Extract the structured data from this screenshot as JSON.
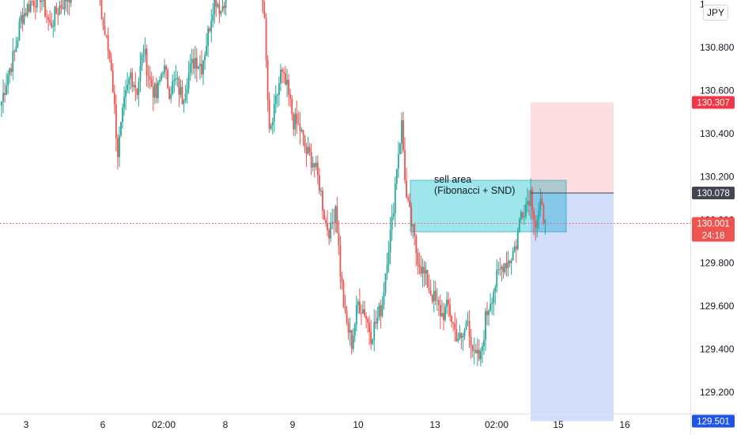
{
  "currency_label": "JPY",
  "colors": {
    "up": "#26a69a",
    "down": "#ef5350",
    "current": "#ef5350",
    "sl": "#f23645",
    "tp": "#1e53e5",
    "entry": "#434651",
    "zone": "#5fd3e0"
  },
  "chart_data": {
    "type": "candlestick",
    "y_ticks": [
      "129.200",
      "129.400",
      "129.600",
      "129.800",
      "130.000",
      "130.200",
      "130.400",
      "130.600",
      "130.800",
      "1"
    ],
    "x_ticks": [
      "3",
      "6",
      "02:00",
      "8",
      "9",
      "10",
      "13",
      "02:00",
      "15",
      "16"
    ],
    "ylim": [
      129.1,
      131.0
    ],
    "price_badges": {
      "stop": "130.307",
      "entry": "130.078",
      "current": "130.001",
      "countdown": "24:18",
      "target": "129.501"
    },
    "annotation": {
      "line1": "sell area",
      "line2": "(Fibonacci + SND)"
    },
    "zone": {
      "top": 130.11,
      "bottom": 129.98
    },
    "trade": {
      "stop": 130.307,
      "entry": 130.078,
      "target": 129.501
    },
    "waypoints": [
      [
        0,
        130.31
      ],
      [
        4,
        130.38
      ],
      [
        8,
        130.43
      ],
      [
        12,
        130.52
      ],
      [
        18,
        130.56
      ],
      [
        24,
        130.58
      ],
      [
        30,
        130.5
      ],
      [
        36,
        130.55
      ],
      [
        42,
        130.58
      ],
      [
        45,
        130.63
      ],
      [
        48,
        130.72
      ],
      [
        52,
        130.73
      ],
      [
        56,
        130.66
      ],
      [
        59,
        130.71
      ],
      [
        62,
        130.52
      ],
      [
        65,
        130.46
      ],
      [
        68,
        130.4
      ],
      [
        72,
        130.18
      ],
      [
        76,
        130.3
      ],
      [
        80,
        130.38
      ],
      [
        84,
        130.34
      ],
      [
        88,
        130.44
      ],
      [
        92,
        130.36
      ],
      [
        96,
        130.32
      ],
      [
        100,
        130.4
      ],
      [
        104,
        130.34
      ],
      [
        108,
        130.36
      ],
      [
        112,
        130.32
      ],
      [
        116,
        130.38
      ],
      [
        120,
        130.42
      ],
      [
        124,
        130.4
      ],
      [
        128,
        130.48
      ],
      [
        132,
        130.58
      ],
      [
        136,
        130.54
      ],
      [
        140,
        130.6
      ],
      [
        144,
        130.62
      ],
      [
        148,
        130.66
      ],
      [
        152,
        130.64
      ],
      [
        156,
        130.68
      ],
      [
        160,
        130.67
      ],
      [
        163,
        130.5
      ],
      [
        166,
        130.22
      ],
      [
        169,
        130.28
      ],
      [
        173,
        130.38
      ],
      [
        177,
        130.34
      ],
      [
        181,
        130.26
      ],
      [
        185,
        130.24
      ],
      [
        189,
        130.18
      ],
      [
        193,
        130.16
      ],
      [
        197,
        130.1
      ],
      [
        201,
        130.0
      ],
      [
        204,
        129.98
      ],
      [
        207,
        130.05
      ],
      [
        210,
        129.88
      ],
      [
        213,
        129.76
      ],
      [
        217,
        129.7
      ],
      [
        221,
        129.8
      ],
      [
        225,
        129.78
      ],
      [
        229,
        129.72
      ],
      [
        233,
        129.76
      ],
      [
        236,
        129.8
      ],
      [
        239,
        129.92
      ],
      [
        242,
        130.0
      ],
      [
        245,
        130.15
      ],
      [
        248,
        130.25
      ],
      [
        251,
        130.06
      ],
      [
        254,
        130.0
      ],
      [
        257,
        129.93
      ],
      [
        261,
        129.88
      ],
      [
        265,
        129.84
      ],
      [
        269,
        129.8
      ],
      [
        273,
        129.77
      ],
      [
        277,
        129.79
      ],
      [
        281,
        129.73
      ],
      [
        285,
        129.7
      ],
      [
        289,
        129.76
      ],
      [
        293,
        129.66
      ],
      [
        297,
        129.66
      ],
      [
        300,
        129.76
      ],
      [
        303,
        129.81
      ],
      [
        307,
        129.86
      ],
      [
        311,
        129.9
      ],
      [
        315,
        129.91
      ],
      [
        319,
        129.95
      ],
      [
        322,
        130.03
      ],
      [
        325,
        130.05
      ],
      [
        328,
        130.08
      ],
      [
        331,
        130.0
      ],
      [
        334,
        130.04
      ],
      [
        337,
        130.01
      ]
    ]
  }
}
